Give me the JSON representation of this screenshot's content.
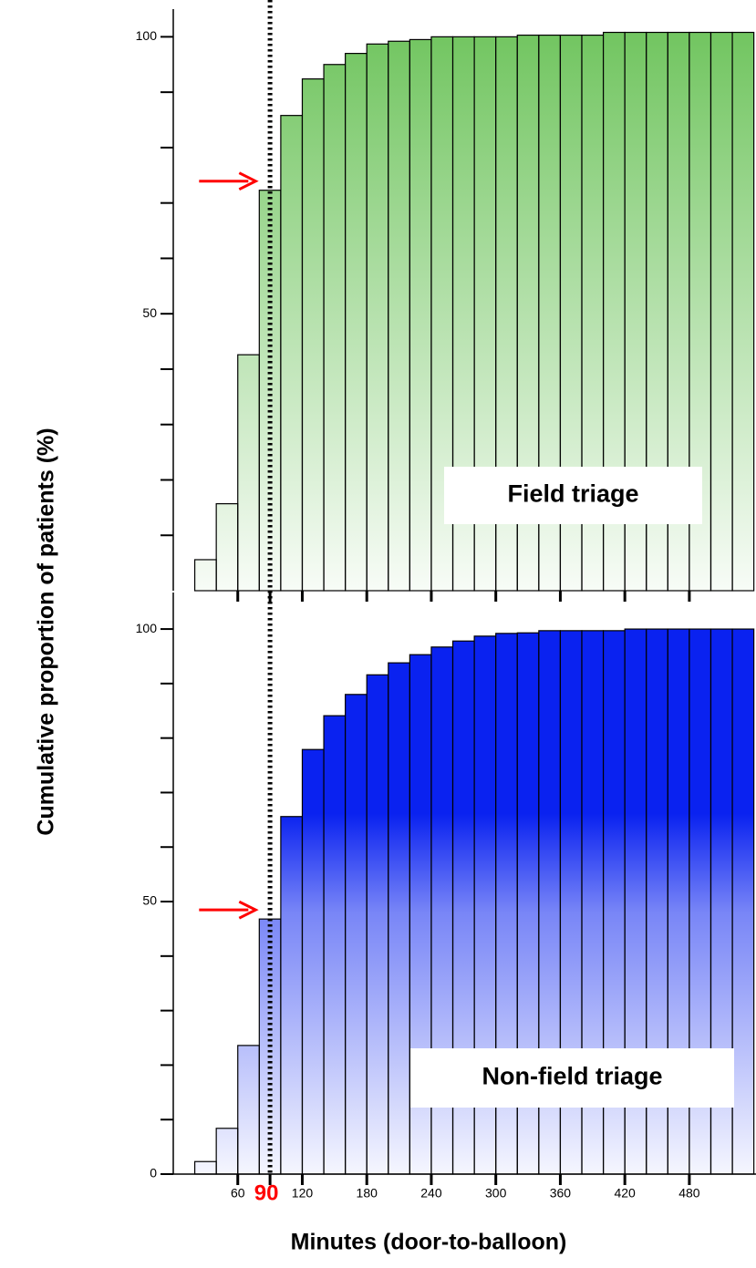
{
  "chart_data": [
    {
      "type": "histogram",
      "label": "Field triage",
      "color": "#6cc35a",
      "ylabel": "Cumulative proportion of patients (%)",
      "bins": [
        20,
        40,
        60,
        80,
        100,
        120,
        140,
        160,
        180,
        200,
        220,
        240,
        260,
        280,
        300,
        320,
        340,
        360,
        380,
        400,
        420,
        440,
        460,
        480,
        500,
        520,
        540
      ],
      "values": [
        5.6,
        15.7,
        42.6,
        72.3,
        85.8,
        92.4,
        95.0,
        97.0,
        98.7,
        99.2,
        99.5,
        100,
        100,
        100,
        100,
        100.3,
        100.3,
        100.3,
        100.3,
        100.8,
        100.8,
        100.8,
        100.8,
        100.8,
        100.8,
        100.8
      ],
      "xlim": [
        0,
        542
      ],
      "ylim": [
        0,
        105
      ],
      "yticks": [
        50,
        100
      ],
      "minor_yticks": [
        10,
        20,
        30,
        40,
        60,
        70,
        80,
        90
      ]
    },
    {
      "type": "histogram",
      "label": "Non-field triage",
      "color": "#0a22f0",
      "xlabel": "Minutes (door-to-balloon)",
      "bins": [
        20,
        40,
        60,
        80,
        100,
        120,
        140,
        160,
        180,
        200,
        220,
        240,
        260,
        280,
        300,
        320,
        340,
        360,
        380,
        400,
        420,
        440,
        460,
        480,
        500,
        520,
        540
      ],
      "values": [
        2.3,
        8.4,
        23.6,
        46.8,
        65.6,
        77.9,
        84.1,
        88.0,
        91.6,
        93.8,
        95.3,
        96.7,
        97.8,
        98.7,
        99.2,
        99.3,
        99.7,
        99.7,
        99.7,
        99.7,
        100,
        100,
        100,
        100,
        100,
        100
      ],
      "xlim": [
        0,
        542
      ],
      "ylim": [
        0,
        106.7
      ],
      "yticks": [
        0,
        50,
        100
      ],
      "minor_yticks": [
        10,
        20,
        30,
        40,
        60,
        70,
        80,
        90
      ],
      "xticks": [
        60,
        90,
        120,
        180,
        240,
        300,
        360,
        420,
        480
      ],
      "ref_line_x": 90,
      "ref_color": "#ff0000"
    }
  ]
}
